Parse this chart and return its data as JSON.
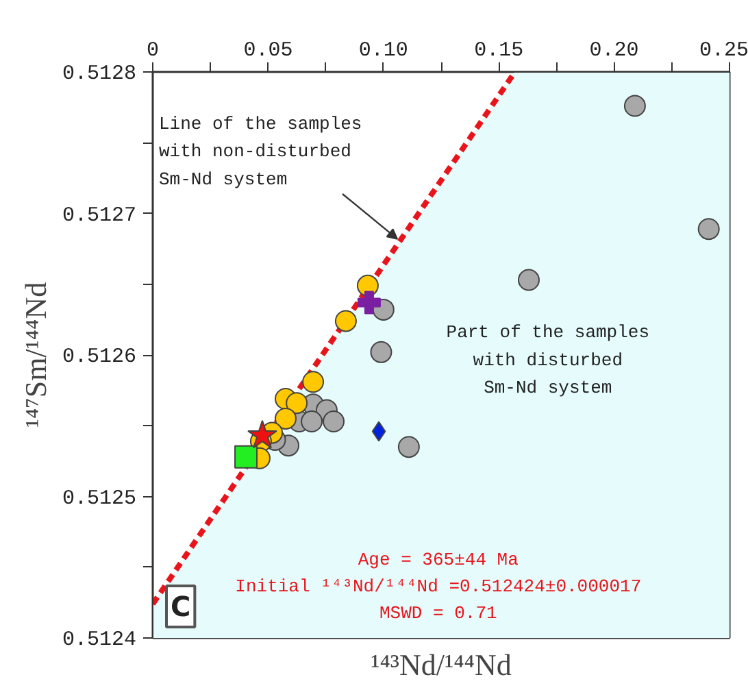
{
  "chart_data": {
    "type": "scatter",
    "xlabel": "¹⁴³Nd/¹⁴⁴Nd",
    "ylabel": "¹⁴⁷Sm/¹⁴⁴Nd",
    "xlim": [
      0,
      0.25
    ],
    "ylim": [
      0.5124,
      0.5128
    ],
    "xticks": [
      0,
      {
        "value": 0.025,
        "label": null
      },
      0.05,
      {
        "value": 0.075,
        "label": null
      },
      {
        "value": 0.1,
        "label": "0.10"
      },
      {
        "value": 0.125,
        "label": null
      },
      0.15,
      {
        "value": 0.175,
        "label": null
      },
      {
        "value": 0.2,
        "label": "0.20"
      },
      {
        "value": 0.225,
        "label": null
      },
      0.25
    ],
    "yticks": [
      0.5124,
      {
        "value": 0.51245,
        "label": null
      },
      0.5125,
      {
        "value": 0.51255,
        "label": null
      },
      0.5126,
      {
        "value": 0.51265,
        "label": null
      },
      0.5127,
      {
        "value": 0.51275,
        "label": null
      },
      0.5128
    ],
    "grid": false,
    "series": [
      {
        "type": "line",
        "color": "#e8141c",
        "line_style": "dashed",
        "x": [
          0,
          0.157
        ],
        "values": [
          0.512424,
          0.5128
        ]
      },
      {
        "color": "#a8a8a8",
        "marker": "circle",
        "x": [
          0.209,
          0.241,
          0.163,
          0.1,
          0.099,
          0.111,
          0.0695,
          0.0754,
          0.0784,
          0.0635,
          0.0689,
          0.0588,
          0.053
        ],
        "values": [
          0.512776,
          0.512689,
          0.512653,
          0.512632,
          0.512602,
          0.512535,
          0.512565,
          0.512561,
          0.512553,
          0.512553,
          0.512553,
          0.512536,
          0.51254
        ]
      },
      {
        "color": "#ffc800",
        "marker": "circle",
        "x": [
          0.0932,
          0.0837,
          0.0695,
          0.0576,
          0.0624,
          0.0576,
          0.0517,
          0.0469,
          0.0463
        ],
        "values": [
          0.512649,
          0.512624,
          0.512581,
          0.512569,
          0.512566,
          0.512555,
          0.512545,
          0.512539,
          0.512527
        ]
      },
      {
        "color": "#7b1fa2",
        "marker": "cross",
        "x": [
          0.0938
        ],
        "values": [
          0.512637
        ]
      },
      {
        "color": "#0022dd",
        "marker": "diamond",
        "x": [
          0.098
        ],
        "values": [
          0.512546
        ]
      },
      {
        "color": "#22ee22",
        "marker": "square",
        "x": [
          0.0404
        ],
        "values": [
          0.512528
        ]
      },
      {
        "color": "#ee1111",
        "marker": "star",
        "x": [
          0.0475
        ],
        "values": [
          0.512543
        ]
      }
    ],
    "annotations": [
      {
        "text": "Line of the samples\nwith non-disturbed\nSm-Nd system",
        "x": 0.106,
        "y": 0.512682
      },
      "Part of the samples\nwith disturbed\nSm-Nd system",
      "Age = 365±44 Ma\nInitial ¹⁴³Nd/¹⁴⁴Nd =0.512424±0.000017\nMSWD = 0.71",
      "C"
    ]
  }
}
